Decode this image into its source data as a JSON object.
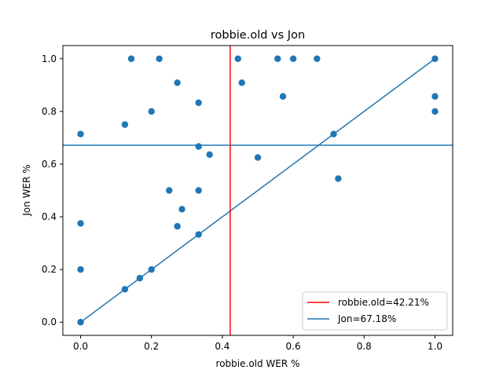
{
  "chart_data": {
    "type": "scatter",
    "title": "robbie.old vs Jon",
    "xlabel": "robbie.old WER %",
    "ylabel": "Jon WER %",
    "xlim": [
      -0.05,
      1.05
    ],
    "ylim": [
      -0.05,
      1.05
    ],
    "xticks": [
      "0.0",
      "0.2",
      "0.4",
      "0.6",
      "0.8",
      "1.0"
    ],
    "yticks": [
      "0.0",
      "0.2",
      "0.4",
      "0.6",
      "0.8",
      "1.0"
    ],
    "grid": false,
    "legend_position": "lower-right",
    "points_color": "#1f77b4",
    "points": [
      [
        0.0,
        0.0
      ],
      [
        0.0,
        0.2
      ],
      [
        0.0,
        0.375
      ],
      [
        0.0,
        0.714
      ],
      [
        0.125,
        0.125
      ],
      [
        0.125,
        0.75
      ],
      [
        0.143,
        1.0
      ],
      [
        0.167,
        0.167
      ],
      [
        0.2,
        0.2
      ],
      [
        0.2,
        0.8
      ],
      [
        0.222,
        1.0
      ],
      [
        0.25,
        0.5
      ],
      [
        0.273,
        0.364
      ],
      [
        0.273,
        0.909
      ],
      [
        0.286,
        0.429
      ],
      [
        0.333,
        0.333
      ],
      [
        0.333,
        0.5
      ],
      [
        0.333,
        0.667
      ],
      [
        0.333,
        0.833
      ],
      [
        0.364,
        0.636
      ],
      [
        0.444,
        1.0
      ],
      [
        0.455,
        0.909
      ],
      [
        0.5,
        0.625
      ],
      [
        0.556,
        1.0
      ],
      [
        0.571,
        0.857
      ],
      [
        0.6,
        1.0
      ],
      [
        0.667,
        1.0
      ],
      [
        0.714,
        0.714
      ],
      [
        0.727,
        0.545
      ],
      [
        1.0,
        1.0
      ],
      [
        1.0,
        0.857
      ],
      [
        1.0,
        0.8
      ]
    ],
    "diagonal": {
      "from": [
        0,
        0
      ],
      "to": [
        1,
        1
      ],
      "color": "#1f77b4"
    },
    "vline": {
      "x": 0.4221,
      "color": "#ff0000",
      "label": "robbie.old=42.21%"
    },
    "hline": {
      "y": 0.6718,
      "color": "#1f77b4",
      "label": "Jon=67.18%"
    }
  }
}
